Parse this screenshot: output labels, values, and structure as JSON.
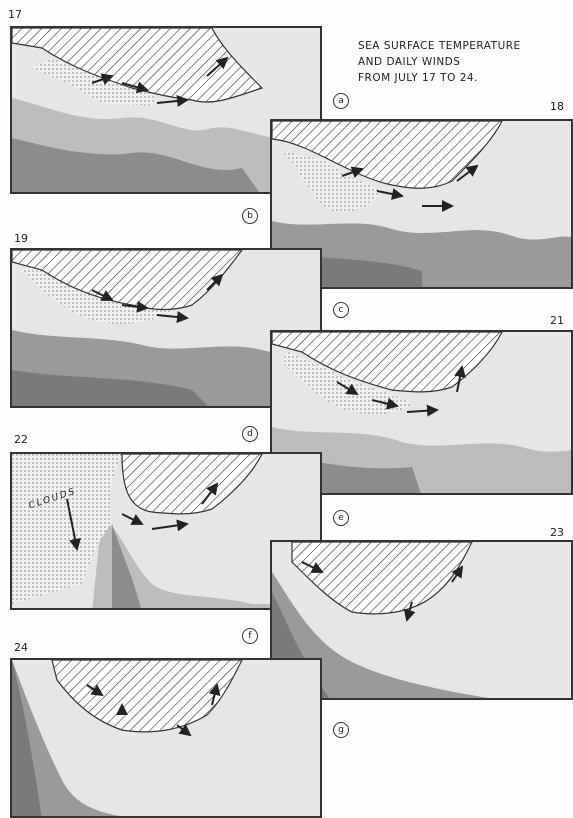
{
  "title": {
    "line1": "SEA SURFACE TEMPERATURE",
    "line2": "AND DAILY WINDS",
    "line3": "FROM JULY 17 TO 24."
  },
  "days": [
    "17",
    "18",
    "19",
    "21",
    "22",
    "23",
    "24"
  ],
  "letters": [
    "a",
    "b",
    "c",
    "d",
    "e",
    "f",
    "g"
  ],
  "clouds_label": "CLOUDS"
}
